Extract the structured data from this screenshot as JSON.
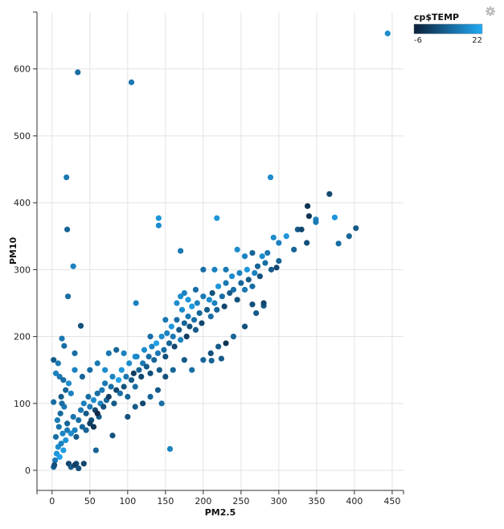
{
  "chart_data": {
    "type": "scatter",
    "title": "",
    "xlabel": "PM2.5",
    "ylabel": "PM10",
    "xlim": [
      -20,
      465
    ],
    "ylim": [
      -30,
      685
    ],
    "xticks": [
      0,
      50,
      100,
      150,
      200,
      250,
      300,
      350,
      400,
      450
    ],
    "yticks": [
      0,
      100,
      200,
      300,
      400,
      500,
      600
    ],
    "grid": true,
    "legend": {
      "title": "cp$TEMP",
      "type": "colorbar",
      "min": -6,
      "max": 22,
      "min_label": "-6",
      "max_label": "22",
      "placement": "top-right",
      "color_low": "#0b1f38",
      "color_high": "#22aaf5"
    },
    "points_format": [
      "PM2.5",
      "PM10",
      "TEMP"
    ],
    "points": [
      [
        34,
        595,
        10
      ],
      [
        105,
        580,
        12
      ],
      [
        444,
        653,
        16
      ],
      [
        19,
        438,
        12
      ],
      [
        20,
        360,
        8
      ],
      [
        28,
        305,
        14
      ],
      [
        21,
        260,
        10
      ],
      [
        38,
        216,
        4
      ],
      [
        289,
        438,
        16
      ],
      [
        367,
        413,
        2
      ],
      [
        338,
        395,
        -2
      ],
      [
        218,
        377,
        18
      ],
      [
        141,
        377,
        18
      ],
      [
        141,
        366,
        16
      ],
      [
        170,
        328,
        12
      ],
      [
        111,
        250,
        14
      ],
      [
        156,
        32,
        14
      ],
      [
        402,
        362,
        6
      ],
      [
        379,
        339,
        10
      ],
      [
        393,
        350,
        8
      ],
      [
        337,
        340,
        4
      ],
      [
        374,
        378,
        18
      ],
      [
        349,
        375,
        14
      ],
      [
        349,
        371,
        12
      ],
      [
        325,
        360,
        6
      ],
      [
        293,
        348,
        16
      ],
      [
        300,
        313,
        8
      ],
      [
        297,
        303,
        2
      ],
      [
        280,
        246,
        6
      ],
      [
        265,
        248,
        4
      ],
      [
        211,
        164,
        8
      ],
      [
        224,
        167,
        6
      ],
      [
        16,
        186,
        10
      ],
      [
        30,
        150,
        14
      ],
      [
        13,
        197,
        12
      ],
      [
        2,
        102,
        10
      ],
      [
        2,
        165,
        6
      ],
      [
        32,
        10,
        4
      ],
      [
        42,
        10,
        2
      ],
      [
        58,
        30,
        8
      ],
      [
        80,
        52,
        4
      ],
      [
        2,
        5,
        8
      ],
      [
        4,
        15,
        12
      ],
      [
        6,
        25,
        18
      ],
      [
        8,
        35,
        16
      ],
      [
        10,
        20,
        20
      ],
      [
        12,
        40,
        14
      ],
      [
        5,
        50,
        10
      ],
      [
        3,
        8,
        4
      ],
      [
        15,
        30,
        19
      ],
      [
        18,
        45,
        17
      ],
      [
        20,
        60,
        12
      ],
      [
        22,
        10,
        2
      ],
      [
        25,
        5,
        6
      ],
      [
        30,
        8,
        0
      ],
      [
        35,
        3,
        4
      ],
      [
        14,
        55,
        15
      ],
      [
        9,
        65,
        11
      ],
      [
        7,
        75,
        13
      ],
      [
        11,
        85,
        9
      ],
      [
        16,
        95,
        12
      ],
      [
        13,
        100,
        10
      ],
      [
        20,
        70,
        8
      ],
      [
        25,
        55,
        16
      ],
      [
        28,
        80,
        11
      ],
      [
        30,
        60,
        14
      ],
      [
        32,
        50,
        6
      ],
      [
        35,
        75,
        10
      ],
      [
        38,
        90,
        12
      ],
      [
        40,
        65,
        8
      ],
      [
        42,
        100,
        14
      ],
      [
        45,
        85,
        6
      ],
      [
        48,
        110,
        10
      ],
      [
        50,
        95,
        12
      ],
      [
        52,
        75,
        4
      ],
      [
        55,
        105,
        16
      ],
      [
        57,
        90,
        2
      ],
      [
        60,
        115,
        10
      ],
      [
        62,
        80,
        6
      ],
      [
        64,
        100,
        14
      ],
      [
        66,
        120,
        12
      ],
      [
        45,
        60,
        8
      ],
      [
        50,
        70,
        0
      ],
      [
        55,
        65,
        -2
      ],
      [
        60,
        85,
        -4
      ],
      [
        68,
        95,
        4
      ],
      [
        70,
        130,
        12
      ],
      [
        72,
        105,
        8
      ],
      [
        75,
        110,
        0
      ],
      [
        78,
        125,
        10
      ],
      [
        80,
        140,
        14
      ],
      [
        82,
        100,
        6
      ],
      [
        85,
        120,
        2
      ],
      [
        88,
        135,
        20
      ],
      [
        90,
        115,
        10
      ],
      [
        92,
        150,
        18
      ],
      [
        95,
        125,
        4
      ],
      [
        98,
        140,
        12
      ],
      [
        100,
        110,
        8
      ],
      [
        102,
        160,
        16
      ],
      [
        105,
        135,
        6
      ],
      [
        108,
        145,
        0
      ],
      [
        110,
        125,
        10
      ],
      [
        112,
        170,
        14
      ],
      [
        115,
        150,
        8
      ],
      [
        118,
        140,
        2
      ],
      [
        120,
        160,
        12
      ],
      [
        122,
        180,
        16
      ],
      [
        125,
        155,
        6
      ],
      [
        128,
        170,
        10
      ],
      [
        130,
        145,
        4
      ],
      [
        132,
        185,
        14
      ],
      [
        135,
        165,
        8
      ],
      [
        138,
        190,
        20
      ],
      [
        140,
        175,
        12
      ],
      [
        142,
        150,
        6
      ],
      [
        145,
        200,
        16
      ],
      [
        148,
        180,
        10
      ],
      [
        150,
        170,
        4
      ],
      [
        152,
        205,
        14
      ],
      [
        155,
        190,
        8
      ],
      [
        158,
        215,
        18
      ],
      [
        160,
        200,
        12
      ],
      [
        162,
        185,
        2
      ],
      [
        165,
        225,
        10
      ],
      [
        168,
        210,
        6
      ],
      [
        170,
        195,
        14
      ],
      [
        172,
        240,
        16
      ],
      [
        175,
        220,
        8
      ],
      [
        178,
        200,
        0
      ],
      [
        180,
        230,
        12
      ],
      [
        182,
        215,
        4
      ],
      [
        185,
        245,
        18
      ],
      [
        188,
        225,
        10
      ],
      [
        190,
        210,
        6
      ],
      [
        192,
        250,
        14
      ],
      [
        195,
        235,
        8
      ],
      [
        198,
        220,
        2
      ],
      [
        200,
        260,
        12
      ],
      [
        205,
        240,
        6
      ],
      [
        208,
        255,
        16
      ],
      [
        210,
        230,
        10
      ],
      [
        212,
        265,
        4
      ],
      [
        215,
        250,
        14
      ],
      [
        218,
        240,
        8
      ],
      [
        220,
        275,
        18
      ],
      [
        225,
        260,
        10
      ],
      [
        228,
        245,
        2
      ],
      [
        230,
        280,
        12
      ],
      [
        235,
        265,
        6
      ],
      [
        238,
        290,
        16
      ],
      [
        240,
        270,
        10
      ],
      [
        245,
        255,
        4
      ],
      [
        248,
        295,
        14
      ],
      [
        250,
        280,
        8
      ],
      [
        255,
        270,
        12
      ],
      [
        258,
        300,
        18
      ],
      [
        260,
        285,
        6
      ],
      [
        265,
        275,
        10
      ],
      [
        268,
        295,
        14
      ],
      [
        272,
        305,
        8
      ],
      [
        275,
        290,
        4
      ],
      [
        278,
        320,
        16
      ],
      [
        282,
        310,
        10
      ],
      [
        285,
        325,
        12
      ],
      [
        290,
        300,
        6
      ],
      [
        300,
        340,
        14
      ],
      [
        310,
        350,
        18
      ],
      [
        320,
        330,
        8
      ],
      [
        330,
        360,
        2
      ],
      [
        340,
        380,
        -2
      ],
      [
        5,
        145,
        14
      ],
      [
        10,
        140,
        12
      ],
      [
        15,
        135,
        10
      ],
      [
        18,
        120,
        8
      ],
      [
        22,
        130,
        16
      ],
      [
        25,
        115,
        14
      ],
      [
        12,
        110,
        6
      ],
      [
        30,
        175,
        10
      ],
      [
        8,
        160,
        12
      ],
      [
        40,
        140,
        8
      ],
      [
        50,
        150,
        10
      ],
      [
        60,
        160,
        12
      ],
      [
        70,
        150,
        16
      ],
      [
        75,
        175,
        12
      ],
      [
        85,
        180,
        8
      ],
      [
        95,
        175,
        14
      ],
      [
        110,
        170,
        16
      ],
      [
        130,
        200,
        10
      ],
      [
        150,
        225,
        12
      ],
      [
        165,
        250,
        16
      ],
      [
        175,
        265,
        14
      ],
      [
        190,
        270,
        10
      ],
      [
        200,
        300,
        10
      ],
      [
        215,
        300,
        14
      ],
      [
        230,
        300,
        12
      ],
      [
        245,
        330,
        16
      ],
      [
        255,
        320,
        14
      ],
      [
        265,
        325,
        8
      ],
      [
        170,
        260,
        16
      ],
      [
        180,
        255,
        18
      ],
      [
        100,
        80,
        4
      ],
      [
        110,
        95,
        6
      ],
      [
        120,
        100,
        2
      ],
      [
        130,
        110,
        8
      ],
      [
        140,
        120,
        6
      ],
      [
        145,
        100,
        10
      ],
      [
        150,
        140,
        4
      ],
      [
        160,
        150,
        8
      ],
      [
        175,
        165,
        6
      ],
      [
        185,
        150,
        10
      ],
      [
        200,
        165,
        8
      ],
      [
        210,
        175,
        4
      ],
      [
        220,
        185,
        6
      ],
      [
        240,
        200,
        8
      ],
      [
        255,
        215,
        4
      ],
      [
        270,
        235,
        6
      ],
      [
        280,
        250,
        2
      ],
      [
        230,
        190,
        -2
      ]
    ]
  }
}
